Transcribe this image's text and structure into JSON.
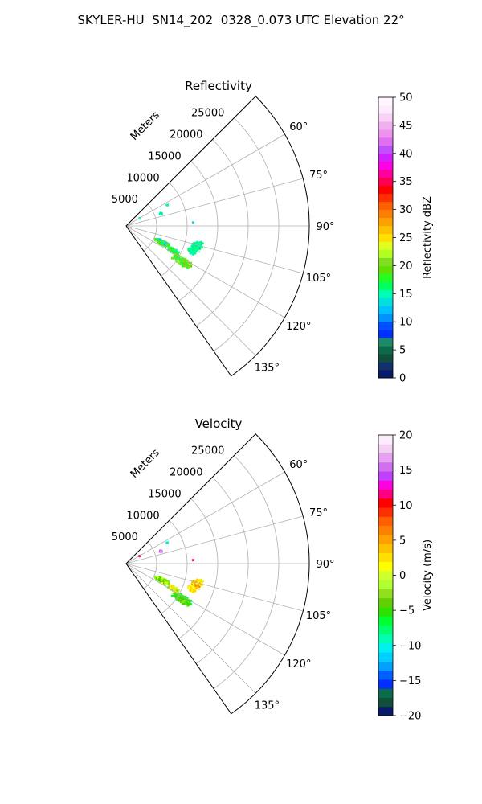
{
  "figure": {
    "suptitle": "SKYLER-HU  SN14_202  0328_0.073 UTC Elevation 22°"
  },
  "chart_data": [
    {
      "type": "polar-sector",
      "title": "Reflectivity",
      "radial_label": "Meters",
      "radial_ticks": [
        5000,
        10000,
        15000,
        20000,
        25000
      ],
      "radial_tick_labels": [
        "5000",
        "10000",
        "15000",
        "20000",
        "25000"
      ],
      "rlim": [
        0,
        30000
      ],
      "theta_ticks": [
        60,
        75,
        90,
        105,
        120,
        135
      ],
      "theta_tick_labels": [
        "60°",
        "75°",
        "90°",
        "105°",
        "120°",
        "135°"
      ],
      "thetalim": [
        45,
        145
      ],
      "grid": true,
      "colorbar": {
        "label": "Reflectivity dBZ",
        "range": [
          0,
          50
        ],
        "ticks": [
          0,
          5,
          10,
          15,
          20,
          25,
          30,
          35,
          40,
          45,
          50
        ],
        "tick_labels": [
          "0",
          "5",
          "10",
          "15",
          "20",
          "25",
          "30",
          "35",
          "40",
          "45",
          "50"
        ],
        "colors": [
          "#0a1a6a",
          "#12306a",
          "#10503a",
          "#0a6a4a",
          "#1a8a6a",
          "#0030ff",
          "#0050ff",
          "#0090ff",
          "#00c0ff",
          "#00e0e0",
          "#00ffb0",
          "#00ff60",
          "#20ff20",
          "#60e000",
          "#80e020",
          "#b0ff20",
          "#e0ff20",
          "#ffe000",
          "#ffc000",
          "#ffa000",
          "#ff8000",
          "#ff6000",
          "#ff3000",
          "#ff0000",
          "#ff0050",
          "#ff00a0",
          "#ff00e0",
          "#d020ff",
          "#c050ff",
          "#e070f0",
          "#f090f0",
          "#f0b0f0",
          "#f8d0f8",
          "#fcecfc",
          "#fff6ff"
        ]
      },
      "echo_regions": [
        {
          "theta": 115,
          "range": 6500,
          "theta_spread": 4,
          "range_spread": 1400,
          "count": 320,
          "value_range": [
            12,
            22
          ]
        },
        {
          "theta": 106,
          "range": 12000,
          "theta_spread": 5,
          "range_spread": 1200,
          "count": 180,
          "value_range": [
            13,
            17
          ]
        },
        {
          "theta": 122,
          "range": 10800,
          "theta_spread": 4,
          "range_spread": 2000,
          "count": 260,
          "value_range": [
            16,
            22
          ]
        },
        {
          "theta": 118,
          "range": 8800,
          "theta_spread": 3,
          "range_spread": 1100,
          "count": 140,
          "value_range": [
            15,
            21
          ]
        },
        {
          "theta": 111,
          "range": 11500,
          "theta_spread": 3,
          "range_spread": 800,
          "count": 80,
          "value_range": [
            14,
            17
          ]
        },
        {
          "theta": 71,
          "range": 6000,
          "theta_spread": 2,
          "range_spread": 400,
          "count": 14,
          "value_range": [
            13,
            16
          ]
        },
        {
          "theta": 63,
          "range": 7500,
          "theta_spread": 1,
          "range_spread": 300,
          "count": 5,
          "value_range": [
            13,
            16
          ]
        },
        {
          "theta": 61,
          "range": 2500,
          "theta_spread": 1,
          "range_spread": 200,
          "count": 3,
          "value_range": [
            13,
            16
          ]
        },
        {
          "theta": 87,
          "range": 11000,
          "theta_spread": 0.5,
          "range_spread": 100,
          "count": 2,
          "value_range": [
            14,
            15
          ]
        }
      ]
    },
    {
      "type": "polar-sector",
      "title": "Velocity",
      "radial_label": "Meters",
      "radial_ticks": [
        5000,
        10000,
        15000,
        20000,
        25000
      ],
      "radial_tick_labels": [
        "5000",
        "10000",
        "15000",
        "20000",
        "25000"
      ],
      "rlim": [
        0,
        30000
      ],
      "theta_ticks": [
        60,
        75,
        90,
        105,
        120,
        135
      ],
      "theta_tick_labels": [
        "60°",
        "75°",
        "90°",
        "105°",
        "120°",
        "135°"
      ],
      "thetalim": [
        45,
        145
      ],
      "grid": true,
      "colorbar": {
        "label": "Velocity (m/s)",
        "range": [
          -20,
          20
        ],
        "ticks": [
          -20,
          -15,
          -10,
          -5,
          0,
          5,
          10,
          15,
          20
        ],
        "tick_labels": [
          "−20",
          "−15",
          "−10",
          "−5",
          "0",
          "5",
          "10",
          "15",
          "20"
        ],
        "colors": [
          "#0a1a6a",
          "#10503a",
          "#0a6a4a",
          "#0030ff",
          "#0060ff",
          "#00a0ff",
          "#00d0ff",
          "#00f0f0",
          "#00ffb0",
          "#00ff70",
          "#00ff30",
          "#30e000",
          "#60d000",
          "#90e020",
          "#b0ff30",
          "#d0ff30",
          "#ffff00",
          "#ffe000",
          "#ffc000",
          "#ffa000",
          "#ff8000",
          "#ff6000",
          "#ff3000",
          "#ff0000",
          "#ff0080",
          "#ff00e0",
          "#c040ff",
          "#d070f0",
          "#e8a0f0",
          "#f4d0f4",
          "#fcecfc"
        ]
      },
      "echo_regions": [
        {
          "theta": 115,
          "range": 6500,
          "theta_spread": 4,
          "range_spread": 1400,
          "count": 320,
          "value_range": [
            -6,
            2
          ]
        },
        {
          "theta": 106,
          "range": 12000,
          "theta_spread": 5,
          "range_spread": 1200,
          "count": 180,
          "value_range": [
            0,
            7
          ]
        },
        {
          "theta": 122,
          "range": 10800,
          "theta_spread": 4,
          "range_spread": 2000,
          "count": 260,
          "value_range": [
            -7,
            -2
          ]
        },
        {
          "theta": 118,
          "range": 8800,
          "theta_spread": 3,
          "range_spread": 1100,
          "count": 140,
          "value_range": [
            -4,
            3
          ]
        },
        {
          "theta": 111,
          "range": 11500,
          "theta_spread": 3,
          "range_spread": 800,
          "count": 80,
          "value_range": [
            1,
            4
          ]
        },
        {
          "theta": 71,
          "range": 6000,
          "theta_spread": 2,
          "range_spread": 400,
          "count": 14,
          "value_range": [
            14,
            17
          ]
        },
        {
          "theta": 63,
          "range": 7500,
          "theta_spread": 1,
          "range_spread": 300,
          "count": 5,
          "value_range": [
            -11,
            -9
          ]
        },
        {
          "theta": 61,
          "range": 2500,
          "theta_spread": 1,
          "range_spread": 200,
          "count": 3,
          "value_range": [
            9,
            12
          ]
        },
        {
          "theta": 87,
          "range": 11000,
          "theta_spread": 0.5,
          "range_spread": 100,
          "count": 2,
          "value_range": [
            10,
            13
          ]
        }
      ]
    }
  ]
}
